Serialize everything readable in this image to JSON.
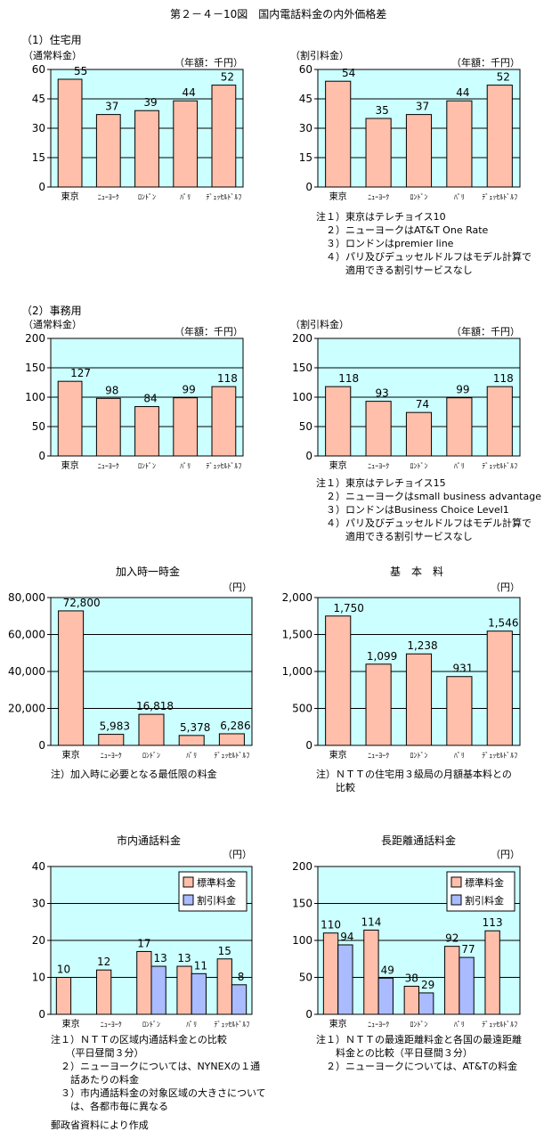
{
  "figure_title": "第２－４－10図　国内電話料金の内外価格差",
  "section1": "（1）住宅用",
  "section2": "（2）事務用",
  "notes_res": [
    "注１）東京はテレチョイス10",
    "　２）ニューヨークはAT&T One Rate",
    "　３）ロンドンはpremier line",
    "　４）パリ及びデュッセルドルフはモデル計算で",
    "　　　適用できる割引サービスなし"
  ],
  "notes_biz": [
    "注１）東京はテレチョイス15",
    "　２）ニューヨークはsmall business advantage",
    "　３）ロンドンはBusiness Choice Level1",
    "　４）パリ及びデュッセルドルフはモデル計算で",
    "　　　適用できる割引サービスなし"
  ],
  "notes_join": [
    "注）加入時に必要となる最低限の料金"
  ],
  "notes_basic": [
    "注）ＮＴＴの住宅用３級局の月額基本料との",
    "　　比較"
  ],
  "notes_local": [
    "注１）ＮＴＴの区域内通話料金との比較",
    "　　（平日昼間３分）",
    "　２）ニューヨークについては、NYNEXの１通",
    "　　話あたりの料金",
    "　３）市内通話料金の対象区域の大きさについて",
    "　　は、各都市毎に異なる"
  ],
  "notes_long": [
    "注１）ＮＴＴの最遠距離料金と各国の最遠距離",
    "　　料金との比較（平日昼間３分）",
    "　２）ニューヨークについては、AT&Tの料金"
  ],
  "source": "郵政省資料により作成",
  "colors": {
    "plot_bg": "#ccffff",
    "bar_standard": "#ffbfaa",
    "bar_discount": "#aabbff"
  },
  "chart_data": [
    {
      "id": "res_normal",
      "type": "bar",
      "categories": [
        "東京",
        "ﾆｭｰﾖｰｸ",
        "ﾛﾝﾄﾞﾝ",
        "ﾊﾟﾘ",
        "ﾃﾞｭｯｾﾙﾄﾞﾙﾌ"
      ],
      "values": [
        55,
        37,
        39,
        44,
        52
      ],
      "ylabel": "（通常料金）",
      "unit": "（年額：千円）",
      "ylim": [
        0,
        60
      ],
      "yticks": [
        "0",
        "15",
        "30",
        "45",
        "60"
      ],
      "value_labels": [
        "55",
        "37",
        "39",
        "44",
        "52"
      ],
      "grid": true
    },
    {
      "id": "res_discount",
      "type": "bar",
      "categories": [
        "東京",
        "ﾆｭｰﾖｰｸ",
        "ﾛﾝﾄﾞﾝ",
        "ﾊﾟﾘ",
        "ﾃﾞｭｯｾﾙﾄﾞﾙﾌ"
      ],
      "values": [
        54,
        35,
        37,
        44,
        52
      ],
      "ylabel": "（割引料金）",
      "unit": "（年額：千円）",
      "ylim": [
        0,
        60
      ],
      "yticks": [
        "0",
        "15",
        "30",
        "45",
        "60"
      ],
      "value_labels": [
        "54",
        "35",
        "37",
        "44",
        "52"
      ],
      "grid": true
    },
    {
      "id": "biz_normal",
      "type": "bar",
      "categories": [
        "東京",
        "ﾆｭｰﾖｰｸ",
        "ﾛﾝﾄﾞﾝ",
        "ﾊﾟﾘ",
        "ﾃﾞｭｯｾﾙﾄﾞﾙﾌ"
      ],
      "values": [
        127,
        98,
        84,
        99,
        118
      ],
      "ylabel": "（通常料金）",
      "unit": "（年額：千円）",
      "ylim": [
        0,
        200
      ],
      "yticks": [
        "0",
        "50",
        "100",
        "150",
        "200"
      ],
      "value_labels": [
        "127",
        "98",
        "84",
        "99",
        "118"
      ],
      "grid": true
    },
    {
      "id": "biz_discount",
      "type": "bar",
      "categories": [
        "東京",
        "ﾆｭｰﾖｰｸ",
        "ﾛﾝﾄﾞﾝ",
        "ﾊﾟﾘ",
        "ﾃﾞｭｯｾﾙﾄﾞﾙﾌ"
      ],
      "values": [
        118,
        93,
        74,
        99,
        118
      ],
      "ylabel": "（割引料金）",
      "unit": "（年額：千円）",
      "ylim": [
        0,
        200
      ],
      "yticks": [
        "0",
        "50",
        "100",
        "150",
        "200"
      ],
      "value_labels": [
        "118",
        "93",
        "74",
        "99",
        "118"
      ],
      "grid": true
    },
    {
      "id": "join_fee",
      "type": "bar",
      "title": "加入時一時金",
      "categories": [
        "東京",
        "ﾆｭｰﾖｰｸ",
        "ﾛﾝﾄﾞﾝ",
        "ﾊﾟﾘ",
        "ﾃﾞｭｯｾﾙﾄﾞﾙﾌ"
      ],
      "values": [
        72800,
        5983,
        16818,
        5378,
        6286
      ],
      "unit": "（円）",
      "ylim": [
        0,
        80000
      ],
      "yticks": [
        "0",
        "20,000",
        "40,000",
        "60,000",
        "80,000"
      ],
      "value_labels": [
        "72,800",
        "5,983",
        "16,818",
        "5,378",
        "6,286"
      ],
      "grid": true
    },
    {
      "id": "basic_fee",
      "type": "bar",
      "title": "基　本　料",
      "categories": [
        "東京",
        "ﾆｭｰﾖｰｸ",
        "ﾛﾝﾄﾞﾝ",
        "ﾊﾟﾘ",
        "ﾃﾞｭｯｾﾙﾄﾞﾙﾌ"
      ],
      "values": [
        1750,
        1099,
        1238,
        931,
        1546
      ],
      "unit": "（円）",
      "ylim": [
        0,
        2000
      ],
      "yticks": [
        "0",
        "500",
        "1,000",
        "1,500",
        "2,000"
      ],
      "value_labels": [
        "1,750",
        "1,099",
        "1,238",
        "931",
        "1,546"
      ],
      "grid": true
    },
    {
      "id": "local_call",
      "type": "bar",
      "title": "市内通話料金",
      "categories": [
        "東京",
        "ﾆｭｰﾖｰｸ",
        "ﾛﾝﾄﾞﾝ",
        "ﾊﾟﾘ",
        "ﾃﾞｭｯｾﾙﾄﾞﾙﾌ"
      ],
      "series": [
        {
          "name": "標準料金",
          "values": [
            10,
            12,
            17,
            13,
            15
          ],
          "labels": [
            "10",
            "12",
            "17",
            "13",
            "15"
          ]
        },
        {
          "name": "割引料金",
          "values": [
            null,
            null,
            13,
            11,
            8
          ],
          "labels": [
            "",
            "",
            "13",
            "11",
            "8"
          ]
        }
      ],
      "unit": "（円）",
      "ylim": [
        0,
        40
      ],
      "yticks": [
        "0",
        "10",
        "20",
        "30",
        "40"
      ],
      "legend": "top-right",
      "grid": true
    },
    {
      "id": "long_call",
      "type": "bar",
      "title": "長距離通話料金",
      "categories": [
        "東京",
        "ﾆｭｰﾖｰｸ",
        "ﾛﾝﾄﾞﾝ",
        "ﾊﾟﾘ",
        "ﾃﾞｭｯｾﾙﾄﾞﾙﾌ"
      ],
      "series": [
        {
          "name": "標準料金",
          "values": [
            110,
            114,
            38,
            92,
            113
          ],
          "labels": [
            "110",
            "114",
            "38",
            "92",
            "113"
          ]
        },
        {
          "name": "割引料金",
          "values": [
            94,
            49,
            29,
            77,
            null
          ],
          "labels": [
            "94",
            "49",
            "29",
            "77",
            ""
          ]
        }
      ],
      "unit": "（円）",
      "ylim": [
        0,
        200
      ],
      "yticks": [
        "0",
        "50",
        "100",
        "150",
        "200"
      ],
      "legend": "top-right",
      "grid": true
    }
  ]
}
